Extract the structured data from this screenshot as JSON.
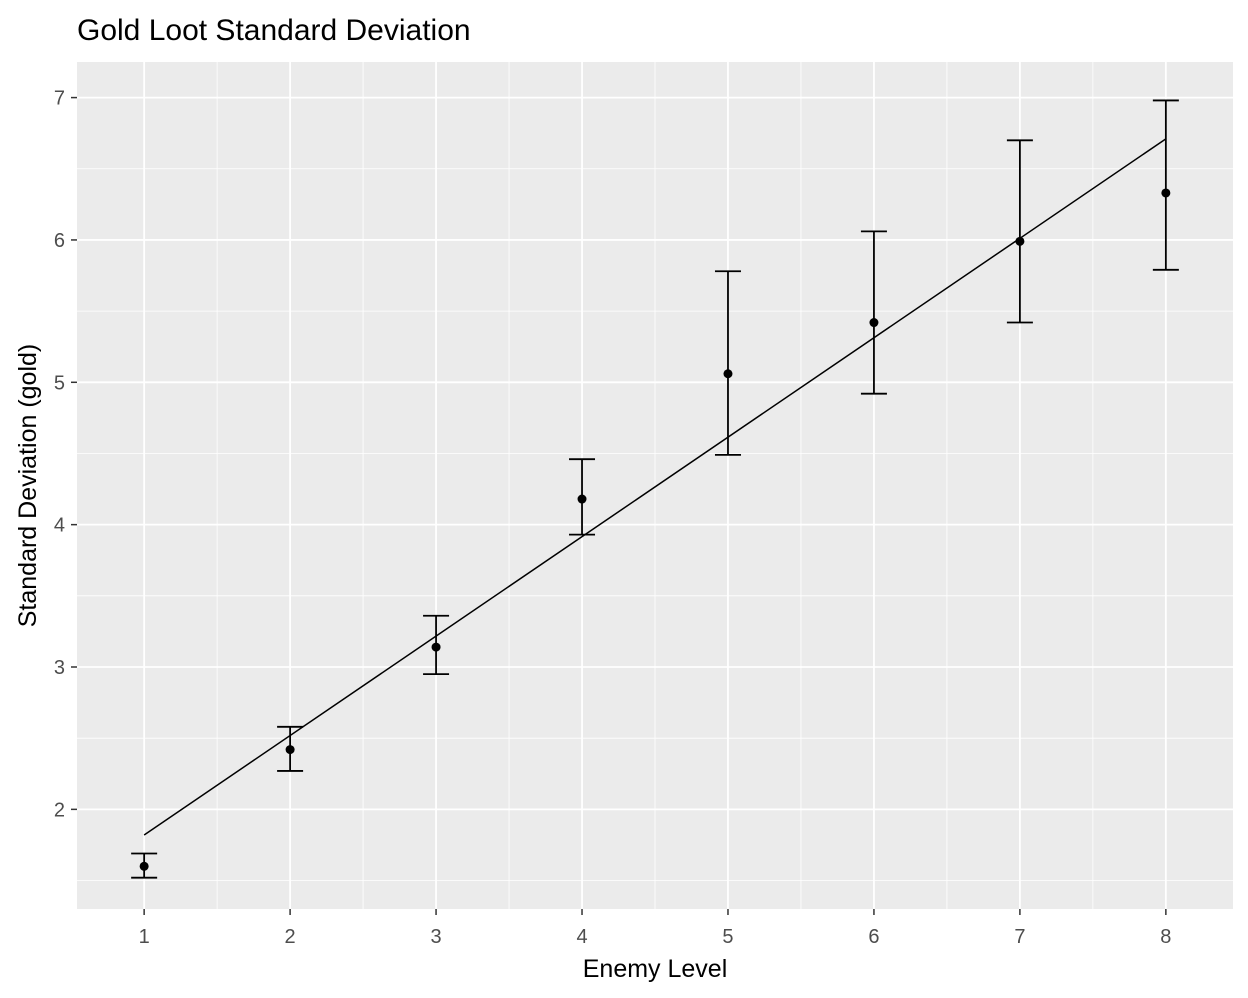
{
  "chart_data": {
    "type": "scatter",
    "title": "Gold Loot Standard Deviation",
    "xlabel": "Enemy Level",
    "ylabel": "Standard Deviation (gold)",
    "xlim": [
      0.54,
      8.46
    ],
    "ylim": [
      1.3,
      7.25
    ],
    "x_ticks": [
      1,
      2,
      3,
      4,
      5,
      6,
      7,
      8
    ],
    "y_ticks": [
      2,
      3,
      4,
      5,
      6,
      7
    ],
    "grid": true,
    "panel_background": "#ebebeb",
    "grid_color": "#ffffff",
    "mark_color": "#000000",
    "points": [
      {
        "x": 1,
        "y": 1.6,
        "ymin": 1.52,
        "ymax": 1.69
      },
      {
        "x": 2,
        "y": 2.42,
        "ymin": 2.27,
        "ymax": 2.58
      },
      {
        "x": 3,
        "y": 3.14,
        "ymin": 2.95,
        "ymax": 3.36
      },
      {
        "x": 4,
        "y": 4.18,
        "ymin": 3.93,
        "ymax": 4.46
      },
      {
        "x": 5,
        "y": 5.06,
        "ymin": 4.49,
        "ymax": 5.78
      },
      {
        "x": 6,
        "y": 5.42,
        "ymin": 4.92,
        "ymax": 6.06
      },
      {
        "x": 7,
        "y": 5.99,
        "ymin": 5.42,
        "ymax": 6.7
      },
      {
        "x": 8,
        "y": 6.33,
        "ymin": 5.79,
        "ymax": 6.98
      }
    ],
    "trend_line": {
      "x": [
        1,
        8
      ],
      "y": [
        1.82,
        6.71
      ]
    }
  }
}
